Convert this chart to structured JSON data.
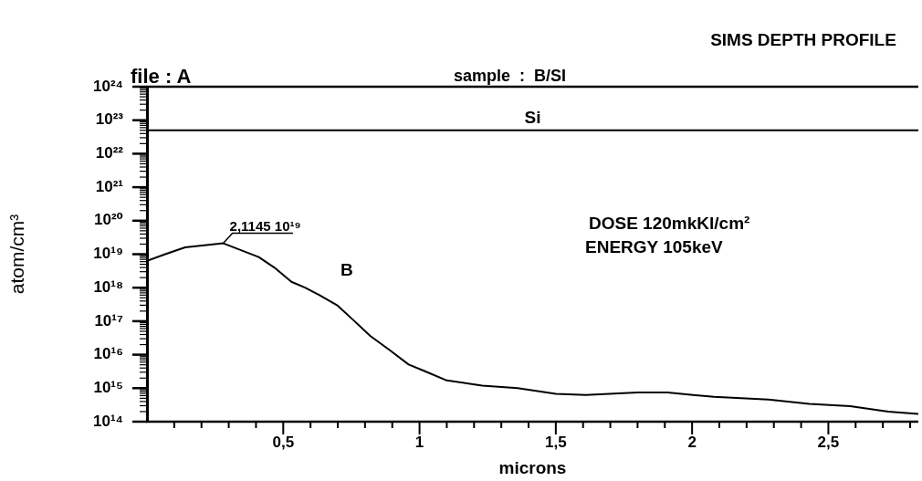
{
  "chart_data": {
    "type": "line",
    "title": "SIMS DEPTH PROFILE",
    "xlabel": "microns",
    "ylabel": "atom/cm³",
    "log": "y",
    "grid": false,
    "legend": false,
    "marker": "none",
    "series": [
      {
        "name": "Si",
        "color": "#000000",
        "x": [
          0,
          2.83
        ],
        "values": [
          5e+22,
          5e+22
        ]
      },
      {
        "name": "B",
        "color": "#000000",
        "x": [
          0,
          0.067,
          0.14,
          0.28,
          0.41,
          0.467,
          0.53,
          0.58,
          0.633,
          0.7,
          0.756,
          0.82,
          0.889,
          0.96,
          1.02,
          1.1,
          1.23,
          1.36,
          1.5,
          1.61,
          1.8,
          1.91,
          2.08,
          2.28,
          2.43,
          2.58,
          2.72,
          2.83
        ],
        "values": [
          6.3e+18,
          1e+19,
          1.6e+19,
          2.1145e+19,
          8.2e+18,
          4e+18,
          1.5e+18,
          1e+18,
          6e+17,
          2.9e+17,
          1.1e+17,
          3.6e+16,
          1.4e+16,
          5100000000000000.0,
          3200000000000000.0,
          1700000000000000.0,
          1200000000000000.0,
          1000000000000000.0,
          680000000000000.0,
          630000000000000.0,
          740000000000000.0,
          740000000000000.0,
          550000000000000.0,
          460000000000000.0,
          340000000000000.0,
          290000000000000.0,
          200000000000000.0,
          170000000000000.0
        ]
      }
    ],
    "xlim": [
      0,
      2.83
    ],
    "ylim": [
      100000000000000.0,
      1e+24
    ],
    "xticks": [
      {
        "value": 0.1,
        "label": null
      },
      {
        "value": 0.2,
        "label": null
      },
      {
        "value": 0.3,
        "label": null
      },
      {
        "value": 0.4,
        "label": null
      },
      {
        "value": 0.5,
        "label": "0,5"
      },
      {
        "value": 0.6,
        "label": null
      },
      {
        "value": 0.7,
        "label": null
      },
      {
        "value": 0.8,
        "label": null
      },
      {
        "value": 0.9,
        "label": null
      },
      1,
      {
        "value": 1.1,
        "label": null
      },
      {
        "value": 1.2,
        "label": null
      },
      {
        "value": 1.3,
        "label": null
      },
      {
        "value": 1.4,
        "label": null
      },
      {
        "value": 1.5,
        "label": "1,5"
      },
      {
        "value": 1.6,
        "label": null
      },
      {
        "value": 1.7,
        "label": null
      },
      {
        "value": 1.8,
        "label": null
      },
      {
        "value": 1.9,
        "label": null
      },
      2,
      {
        "value": 2.1,
        "label": null
      },
      {
        "value": 2.2,
        "label": null
      },
      {
        "value": 2.3,
        "label": null
      },
      {
        "value": 2.4,
        "label": null
      },
      {
        "value": 2.5,
        "label": "2,5"
      },
      {
        "value": 2.6,
        "label": null
      },
      {
        "value": 2.7,
        "label": null
      },
      {
        "value": 2.8,
        "label": null
      }
    ],
    "yticks": [
      {
        "value": 100000000000000.0,
        "label": "10¹⁴"
      },
      {
        "value": 200000000000000.0,
        "label": null
      },
      {
        "value": 300000000000000.0,
        "label": null
      },
      {
        "value": 400000000000000.0,
        "label": null
      },
      {
        "value": 500000000000000.0,
        "label": null
      },
      {
        "value": 600000000000000.0,
        "label": null
      },
      {
        "value": 700000000000000.0,
        "label": null
      },
      {
        "value": 800000000000000.0,
        "label": null
      },
      {
        "value": 900000000000000.0,
        "label": null
      },
      {
        "value": 1000000000000000.0,
        "label": "10¹⁵"
      },
      {
        "value": 2000000000000000.0,
        "label": null
      },
      {
        "value": 3000000000000000.0,
        "label": null
      },
      {
        "value": 4000000000000000.0,
        "label": null
      },
      {
        "value": 5000000000000000.0,
        "label": null
      },
      {
        "value": 6000000000000000.0,
        "label": null
      },
      {
        "value": 7000000000000000.0,
        "label": null
      },
      {
        "value": 8000000000000000.0,
        "label": null
      },
      {
        "value": 9000000000000000.0,
        "label": null
      },
      {
        "value": 1e+16,
        "label": "10¹⁶"
      },
      {
        "value": 2e+16,
        "label": null
      },
      {
        "value": 3e+16,
        "label": null
      },
      {
        "value": 4e+16,
        "label": null
      },
      {
        "value": 5e+16,
        "label": null
      },
      {
        "value": 6e+16,
        "label": null
      },
      {
        "value": 7e+16,
        "label": null
      },
      {
        "value": 8e+16,
        "label": null
      },
      {
        "value": 9e+16,
        "label": null
      },
      {
        "value": 1e+17,
        "label": "10¹⁷"
      },
      {
        "value": 2e+17,
        "label": null
      },
      {
        "value": 3e+17,
        "label": null
      },
      {
        "value": 4e+17,
        "label": null
      },
      {
        "value": 5e+17,
        "label": null
      },
      {
        "value": 6e+17,
        "label": null
      },
      {
        "value": 7e+17,
        "label": null
      },
      {
        "value": 8e+17,
        "label": null
      },
      {
        "value": 9e+17,
        "label": null
      },
      {
        "value": 1e+18,
        "label": "10¹⁸"
      },
      {
        "value": 2e+18,
        "label": null
      },
      {
        "value": 3e+18,
        "label": null
      },
      {
        "value": 4e+18,
        "label": null
      },
      {
        "value": 5e+18,
        "label": null
      },
      {
        "value": 6e+18,
        "label": null
      },
      {
        "value": 7e+18,
        "label": null
      },
      {
        "value": 8e+18,
        "label": null
      },
      {
        "value": 9e+18,
        "label": null
      },
      {
        "value": 1e+19,
        "label": "10¹⁹"
      },
      {
        "value": 2e+19,
        "label": null
      },
      {
        "value": 3e+19,
        "label": null
      },
      {
        "value": 4e+19,
        "label": null
      },
      {
        "value": 5e+19,
        "label": null
      },
      {
        "value": 6e+19,
        "label": null
      },
      {
        "value": 7e+19,
        "label": null
      },
      {
        "value": 8e+19,
        "label": null
      },
      {
        "value": 9e+19,
        "label": null
      },
      {
        "value": 1e+20,
        "label": "10²⁰"
      },
      {
        "value": 2e+20,
        "label": null
      },
      {
        "value": 3e+20,
        "label": null
      },
      {
        "value": 4e+20,
        "label": null
      },
      {
        "value": 5e+20,
        "label": null
      },
      {
        "value": 6e+20,
        "label": null
      },
      {
        "value": 7e+20,
        "label": null
      },
      {
        "value": 8e+20,
        "label": null
      },
      {
        "value": 9e+20,
        "label": null
      },
      {
        "value": 1e+21,
        "label": "10²¹"
      },
      {
        "value": 2e+21,
        "label": null
      },
      {
        "value": 3e+21,
        "label": null
      },
      {
        "value": 4e+21,
        "label": null
      },
      {
        "value": 5e+21,
        "label": null
      },
      {
        "value": 6e+21,
        "label": null
      },
      {
        "value": 7e+21,
        "label": null
      },
      {
        "value": 8e+21,
        "label": null
      },
      {
        "value": 9e+21,
        "label": null
      },
      {
        "value": 1e+22,
        "label": "10²²"
      },
      {
        "value": 2e+22,
        "label": null
      },
      {
        "value": 3e+22,
        "label": null
      },
      {
        "value": 4e+22,
        "label": null
      },
      {
        "value": 5e+22,
        "label": null
      },
      {
        "value": 6e+22,
        "label": null
      },
      {
        "value": 7e+22,
        "label": null
      },
      {
        "value": 8e+22,
        "label": null
      },
      {
        "value": 9e+22,
        "label": null
      },
      {
        "value": 1e+23,
        "label": "10²³"
      },
      {
        "value": 2e+23,
        "label": null
      },
      {
        "value": 3e+23,
        "label": null
      },
      {
        "value": 4e+23,
        "label": null
      },
      {
        "value": 5e+23,
        "label": null
      },
      {
        "value": 6e+23,
        "label": null
      },
      {
        "value": 7e+23,
        "label": null
      },
      {
        "value": 8e+23,
        "label": null
      },
      {
        "value": 9e+23,
        "label": null
      },
      {
        "value": 1e+24,
        "label": "10²⁴"
      }
    ],
    "annotations": [
      "file : A",
      "sample  :  B/SI",
      {
        "text": "2,1145 10¹⁹",
        "x": 0.28,
        "y": 2.1145e+19
      },
      "DOSE 120mkKl/cm²",
      "ENERGY 105keV"
    ]
  }
}
